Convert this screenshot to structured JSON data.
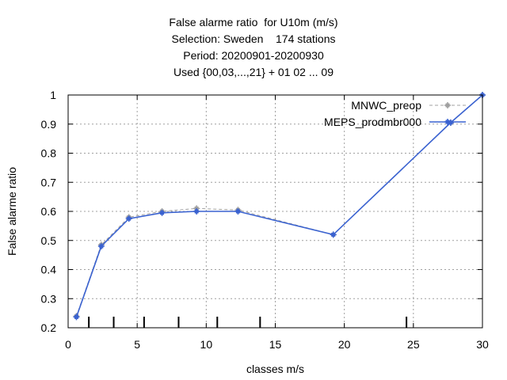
{
  "chart_data": {
    "type": "line",
    "title_lines": [
      "False alarme ratio  for U10m (m/s)",
      "Selection: Sweden    174 stations",
      "Period: 20200901-20200930",
      "Used {00,03,...,21} + 01 02 ... 09"
    ],
    "xlabel": "classes m/s",
    "ylabel": "False alarme ratio",
    "xlim": [
      0,
      30
    ],
    "ylim": [
      0.2,
      1.0
    ],
    "xticks": [
      0,
      5,
      10,
      15,
      20,
      25,
      30
    ],
    "xtick_labels": [
      "0",
      "5",
      "10",
      "15",
      "20",
      "25",
      "30"
    ],
    "yticks": [
      0.2,
      0.3,
      0.4,
      0.5,
      0.6,
      0.7,
      0.8,
      0.9,
      1.0
    ],
    "ytick_labels": [
      "0.2",
      "0.3",
      "0.4",
      "0.5",
      "0.6",
      "0.7",
      "0.8",
      "0.9",
      "1"
    ],
    "grid": true,
    "legend_position": "top-right",
    "class_boundaries": [
      1.5,
      3.3,
      5.5,
      8.0,
      10.8,
      13.9,
      24.5
    ],
    "series": [
      {
        "name": "MNWC_preop",
        "color": "#a0a0a0",
        "style": "dashed",
        "x": [
          0.6,
          2.4,
          4.4,
          6.8,
          9.3,
          12.3,
          19.2,
          27.7,
          30.0
        ],
        "y": [
          0.24,
          0.485,
          0.58,
          0.6,
          0.61,
          0.605,
          0.52,
          0.905,
          1.0
        ]
      },
      {
        "name": "MEPS_prodmbr000",
        "color": "#3a62d0",
        "style": "solid",
        "x": [
          0.6,
          2.4,
          4.4,
          6.8,
          9.3,
          12.3,
          19.2,
          27.7,
          30.0
        ],
        "y": [
          0.237,
          0.48,
          0.575,
          0.595,
          0.6,
          0.6,
          0.52,
          0.905,
          1.0
        ]
      }
    ]
  }
}
